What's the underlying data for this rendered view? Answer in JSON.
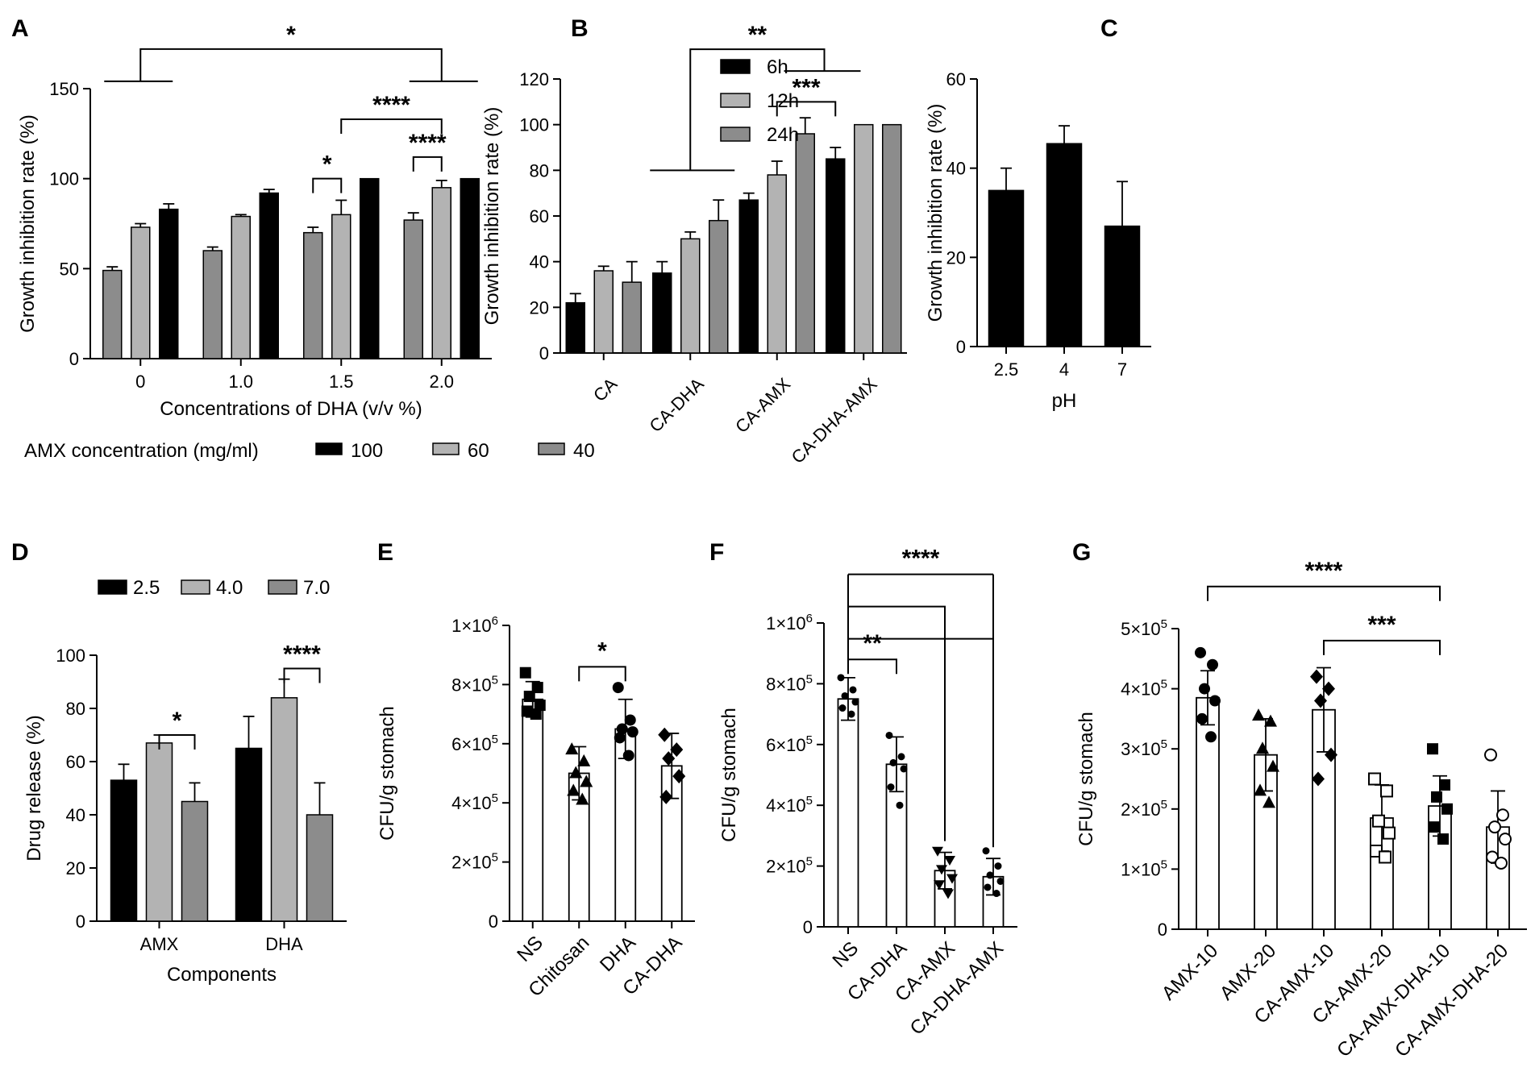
{
  "colors": {
    "black": "#000000",
    "light": "#b3b3b3",
    "mid": "#8c8c8c",
    "white": "#ffffff",
    "axis": "#000000"
  },
  "chart_data": [
    {
      "panel": "A",
      "type": "bar",
      "title": "",
      "xlabel": "Concentrations of DHA (v/v %)",
      "ylabel": "Growth inhibition rate (%)",
      "ylim": [
        0,
        150
      ],
      "yticks": [
        0,
        50,
        100,
        150
      ],
      "categories": [
        "0",
        "1.0",
        "1.5",
        "2.0"
      ],
      "legend_title": "AMX concentration (mg/ml)",
      "legend_order": [
        2,
        1,
        0
      ],
      "series": [
        {
          "name": "40",
          "color": "mid",
          "values": [
            49,
            60,
            70,
            77
          ],
          "errors": [
            2,
            2,
            3,
            4
          ]
        },
        {
          "name": "60",
          "color": "light",
          "values": [
            73,
            79,
            80,
            95
          ],
          "errors": [
            2,
            1,
            8,
            4
          ]
        },
        {
          "name": "100",
          "color": "black",
          "values": [
            83,
            92,
            100,
            100
          ],
          "errors": [
            3,
            2,
            0,
            0
          ]
        }
      ],
      "annotations": [
        {
          "text": "*",
          "type": "span",
          "from": [
            0,
            1
          ],
          "to": [
            3,
            1
          ],
          "y": 172
        },
        {
          "text": "****",
          "type": "bracket",
          "from": [
            2,
            1
          ],
          "to": [
            3,
            1
          ],
          "y": 133
        },
        {
          "text": "*",
          "type": "bracket",
          "from": [
            2,
            0
          ],
          "to": [
            2,
            1
          ],
          "y": 100
        },
        {
          "text": "****",
          "type": "bracket",
          "from": [
            3,
            0
          ],
          "to": [
            3,
            1
          ],
          "y": 112
        }
      ]
    },
    {
      "panel": "B",
      "type": "bar",
      "title": "",
      "xlabel": "",
      "ylabel": "Growth inhibition rate (%)",
      "ylim": [
        0,
        120
      ],
      "yticks": [
        0,
        20,
        40,
        60,
        80,
        100,
        120
      ],
      "categories": [
        "CA",
        "CA-DHA",
        "CA-AMX",
        "CA-DHA-AMX"
      ],
      "legend_order": [
        0,
        1,
        2
      ],
      "series": [
        {
          "name": "6h",
          "color": "black",
          "values": [
            22,
            35,
            67,
            85
          ],
          "errors": [
            4,
            5,
            3,
            5
          ]
        },
        {
          "name": "12h",
          "color": "light",
          "values": [
            36,
            50,
            78,
            100
          ],
          "errors": [
            2,
            3,
            6,
            0
          ]
        },
        {
          "name": "24h",
          "color": "mid",
          "values": [
            31,
            58,
            96,
            100
          ],
          "errors": [
            9,
            9,
            7,
            0
          ]
        }
      ],
      "annotations": [
        {
          "text": "**",
          "type": "nested",
          "from": [
            1,
            1
          ],
          "to": [
            2.5,
            1
          ],
          "y": 133
        },
        {
          "text": "***",
          "type": "bracket",
          "from": [
            2,
            1
          ],
          "to": [
            3,
            0
          ],
          "y": 110
        }
      ]
    },
    {
      "panel": "C",
      "type": "bar",
      "title": "",
      "xlabel": "pH",
      "ylabel": "Growth inhibition rate (%)",
      "ylim": [
        0,
        60
      ],
      "yticks": [
        0,
        20,
        40,
        60
      ],
      "categories": [
        "2.5",
        "4",
        "7"
      ],
      "series": [
        {
          "name": "",
          "color": "black",
          "values": [
            35,
            45.5,
            27
          ],
          "errors": [
            5,
            4,
            10
          ]
        }
      ]
    },
    {
      "panel": "D",
      "type": "bar",
      "title": "",
      "xlabel": "Components",
      "ylabel": "Drug release (%)",
      "ylim": [
        0,
        100
      ],
      "yticks": [
        0,
        20,
        40,
        60,
        80,
        100
      ],
      "categories": [
        "AMX",
        "DHA"
      ],
      "legend_order": [
        0,
        1,
        2
      ],
      "series": [
        {
          "name": "2.5",
          "color": "black",
          "values": [
            53,
            65
          ],
          "errors": [
            6,
            12
          ]
        },
        {
          "name": "4.0",
          "color": "light",
          "values": [
            67,
            84
          ],
          "errors": [
            3,
            7
          ]
        },
        {
          "name": "7.0",
          "color": "mid",
          "values": [
            45,
            40
          ],
          "errors": [
            7,
            12
          ]
        }
      ],
      "annotations": [
        {
          "text": "*",
          "type": "bracket",
          "from": [
            0,
            1
          ],
          "to": [
            0,
            2
          ],
          "y": 70
        },
        {
          "text": "****",
          "type": "bracket",
          "from": [
            1,
            1
          ],
          "to": [
            1,
            2
          ],
          "y": 95
        }
      ]
    },
    {
      "panel": "E",
      "type": "scatter",
      "title": "",
      "xlabel": "",
      "ylabel": "CFU/g stomach",
      "ylim": [
        0,
        1000000
      ],
      "yticks": [
        0,
        200000,
        400000,
        600000,
        800000,
        1000000
      ],
      "ytick_labels": [
        {
          "text": "0",
          "sup": ""
        },
        {
          "text": "2×10",
          "sup": "5"
        },
        {
          "text": "4×10",
          "sup": "5"
        },
        {
          "text": "6×10",
          "sup": "5"
        },
        {
          "text": "8×10",
          "sup": "5"
        },
        {
          "text": "1×10",
          "sup": "6"
        }
      ],
      "categories": [
        "NS",
        "Chitosan",
        "DHA",
        "CA-DHA"
      ],
      "groups": [
        {
          "marker": "square-filled",
          "mean": 750000,
          "sd": 60000,
          "points": [
            840000,
            790000,
            760000,
            730000,
            710000,
            700000
          ]
        },
        {
          "marker": "triangle-filled",
          "mean": 500000,
          "sd": 90000,
          "points": [
            580000,
            540000,
            500000,
            470000,
            440000,
            410000
          ]
        },
        {
          "marker": "circle-filled",
          "mean": 650000,
          "sd": 100000,
          "points": [
            790000,
            680000,
            650000,
            640000,
            620000,
            560000
          ]
        },
        {
          "marker": "diamond-filled",
          "mean": 525000,
          "sd": 110000,
          "points": [
            630000,
            580000,
            550000,
            490000,
            420000
          ]
        }
      ],
      "annotations": [
        {
          "text": "*",
          "type": "bracket",
          "from": [
            1,
            0
          ],
          "to": [
            2,
            0
          ],
          "y": 860000
        }
      ]
    },
    {
      "panel": "F",
      "type": "scatter",
      "title": "",
      "xlabel": "",
      "ylabel": "CFU/g stomach",
      "ylim": [
        0,
        1000000
      ],
      "yticks": [
        0,
        200000,
        400000,
        600000,
        800000,
        1000000
      ],
      "ytick_labels": [
        {
          "text": "0",
          "sup": ""
        },
        {
          "text": "2×10",
          "sup": "5"
        },
        {
          "text": "4×10",
          "sup": "5"
        },
        {
          "text": "6×10",
          "sup": "5"
        },
        {
          "text": "8×10",
          "sup": "5"
        },
        {
          "text": "1×10",
          "sup": "6"
        }
      ],
      "categories": [
        "NS",
        "CA-DHA",
        "CA-AMX",
        "CA-DHA-AMX"
      ],
      "groups": [
        {
          "marker": "dot",
          "mean": 750000,
          "sd": 70000,
          "points": [
            820000,
            780000,
            760000,
            740000,
            720000,
            700000
          ]
        },
        {
          "marker": "dot",
          "mean": 535000,
          "sd": 90000,
          "points": [
            630000,
            560000,
            540000,
            520000,
            460000,
            400000
          ]
        },
        {
          "marker": "triangle-down-filled",
          "mean": 185000,
          "sd": 60000,
          "points": [
            250000,
            220000,
            190000,
            160000,
            140000,
            110000
          ]
        },
        {
          "marker": "dot",
          "mean": 165000,
          "sd": 60000,
          "points": [
            250000,
            200000,
            170000,
            150000,
            130000,
            110000
          ]
        }
      ],
      "annotations": [
        {
          "text": "****",
          "type": "fan",
          "from": [
            0,
            0
          ],
          "to": [
            3,
            0
          ],
          "y": 1160000
        },
        {
          "text": "**",
          "type": "bracket",
          "from": [
            0,
            0
          ],
          "to": [
            1,
            0
          ],
          "y": 880000
        }
      ]
    },
    {
      "panel": "G",
      "type": "scatter",
      "title": "",
      "xlabel": "",
      "ylabel": "CFU/g stomach",
      "ylim": [
        0,
        500000
      ],
      "yticks": [
        0,
        100000,
        200000,
        300000,
        400000,
        500000
      ],
      "ytick_labels": [
        {
          "text": "0",
          "sup": ""
        },
        {
          "text": "1×10",
          "sup": "5"
        },
        {
          "text": "2×10",
          "sup": "5"
        },
        {
          "text": "3×10",
          "sup": "5"
        },
        {
          "text": "4×10",
          "sup": "5"
        },
        {
          "text": "5×10",
          "sup": "5"
        }
      ],
      "categories": [
        "AMX-10",
        "AMX-20",
        "CA-AMX-10",
        "CA-AMX-20",
        "CA-AMX-DHA-10",
        "CA-AMX-DHA-20"
      ],
      "groups": [
        {
          "marker": "circle-filled",
          "mean": 385000,
          "sd": 45000,
          "points": [
            460000,
            440000,
            400000,
            380000,
            350000,
            320000
          ]
        },
        {
          "marker": "triangle-filled",
          "mean": 290000,
          "sd": 60000,
          "points": [
            355000,
            345000,
            300000,
            270000,
            230000,
            210000
          ]
        },
        {
          "marker": "diamond-filled",
          "mean": 365000,
          "sd": 70000,
          "points": [
            420000,
            400000,
            380000,
            290000,
            250000
          ]
        },
        {
          "marker": "square-open",
          "mean": 185000,
          "sd": 55000,
          "points": [
            250000,
            230000,
            180000,
            160000,
            130000,
            120000
          ]
        },
        {
          "marker": "square-filled",
          "mean": 205000,
          "sd": 50000,
          "points": [
            300000,
            240000,
            220000,
            200000,
            170000,
            150000
          ]
        },
        {
          "marker": "circle-open",
          "mean": 170000,
          "sd": 60000,
          "points": [
            290000,
            190000,
            170000,
            150000,
            120000,
            110000
          ]
        }
      ],
      "annotations": [
        {
          "text": "****",
          "type": "bracket",
          "from": [
            0,
            0
          ],
          "to": [
            4,
            0
          ],
          "y": 570000
        },
        {
          "text": "***",
          "type": "bracket",
          "from": [
            2,
            0
          ],
          "to": [
            4,
            0
          ],
          "y": 480000
        }
      ]
    }
  ]
}
